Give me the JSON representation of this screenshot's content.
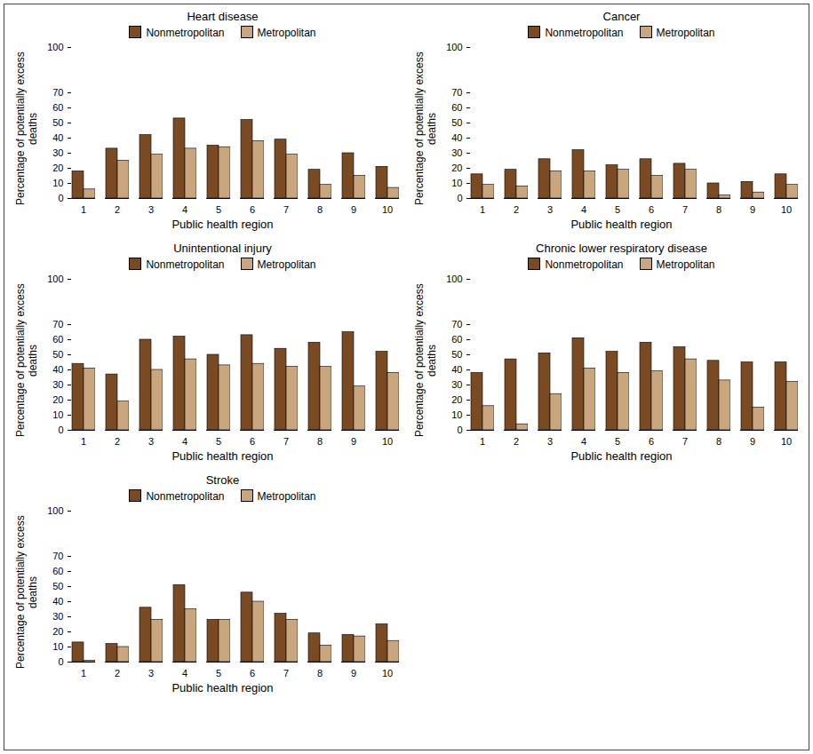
{
  "chart_data": [
    {
      "type": "bar",
      "title": "Heart disease",
      "x_label": "Public health region",
      "y_label": "Percentage of potentially excess deaths",
      "categories": [
        1,
        2,
        3,
        4,
        5,
        6,
        7,
        8,
        9,
        10
      ],
      "series": [
        {
          "name": "Nonmetropolitan",
          "color": "#7a4a22",
          "values": [
            18,
            33,
            42,
            53,
            35,
            52,
            39,
            19,
            30,
            21
          ]
        },
        {
          "name": "Metropolitan",
          "color": "#c9a67e",
          "values": [
            6,
            25,
            29,
            33,
            34,
            38,
            29,
            9,
            15,
            7
          ]
        }
      ],
      "ylim": [
        0,
        100
      ],
      "yticks": [
        0,
        10,
        20,
        30,
        40,
        50,
        60,
        70,
        100
      ],
      "grid": false,
      "legend": "top"
    },
    {
      "type": "bar",
      "title": "Cancer",
      "x_label": "Public health region",
      "y_label": "Percentage of potentially excess deaths",
      "categories": [
        1,
        2,
        3,
        4,
        5,
        6,
        7,
        8,
        9,
        10
      ],
      "series": [
        {
          "name": "Nonmetropolitan",
          "color": "#7a4a22",
          "values": [
            16,
            19,
            26,
            32,
            22,
            26,
            23,
            10,
            11,
            16
          ]
        },
        {
          "name": "Metropolitan",
          "color": "#c9a67e",
          "values": [
            9,
            8,
            18,
            18,
            19,
            15,
            19,
            2,
            4,
            9
          ]
        }
      ],
      "ylim": [
        0,
        100
      ],
      "yticks": [
        0,
        10,
        20,
        30,
        40,
        50,
        60,
        70,
        100
      ],
      "grid": false,
      "legend": "top"
    },
    {
      "type": "bar",
      "title": "Unintentional injury",
      "x_label": "Public health region",
      "y_label": "Percentage of potentially excess deaths",
      "categories": [
        1,
        2,
        3,
        4,
        5,
        6,
        7,
        8,
        9,
        10
      ],
      "series": [
        {
          "name": "Nonmetropolitan",
          "color": "#7a4a22",
          "values": [
            44,
            37,
            60,
            62,
            50,
            63,
            54,
            58,
            65,
            52
          ]
        },
        {
          "name": "Metropolitan",
          "color": "#c9a67e",
          "values": [
            41,
            19,
            40,
            47,
            43,
            44,
            42,
            42,
            29,
            38
          ]
        }
      ],
      "ylim": [
        0,
        100
      ],
      "yticks": [
        0,
        10,
        20,
        30,
        40,
        50,
        60,
        70,
        100
      ],
      "grid": false,
      "legend": "top"
    },
    {
      "type": "bar",
      "title": "Chronic lower respiratory disease",
      "x_label": "Public health region",
      "y_label": "Percentage of potentially excess deaths",
      "categories": [
        1,
        2,
        3,
        4,
        5,
        6,
        7,
        8,
        9,
        10
      ],
      "series": [
        {
          "name": "Nonmetropolitan",
          "color": "#7a4a22",
          "values": [
            38,
            47,
            51,
            61,
            52,
            58,
            55,
            46,
            45,
            45
          ]
        },
        {
          "name": "Metropolitan",
          "color": "#c9a67e",
          "values": [
            16,
            4,
            24,
            41,
            38,
            39,
            47,
            33,
            15,
            32
          ]
        }
      ],
      "ylim": [
        0,
        100
      ],
      "yticks": [
        0,
        10,
        20,
        30,
        40,
        50,
        60,
        70,
        100
      ],
      "grid": false,
      "legend": "top"
    },
    {
      "type": "bar",
      "title": "Stroke",
      "x_label": "Public health region",
      "y_label": "Percentage of potentially excess deaths",
      "categories": [
        1,
        2,
        3,
        4,
        5,
        6,
        7,
        8,
        9,
        10
      ],
      "series": [
        {
          "name": "Nonmetropolitan",
          "color": "#7a4a22",
          "values": [
            13,
            12,
            36,
            51,
            28,
            46,
            32,
            19,
            18,
            25
          ]
        },
        {
          "name": "Metropolitan",
          "color": "#c9a67e",
          "values": [
            1,
            10,
            28,
            35,
            28,
            40,
            28,
            11,
            17,
            14
          ]
        }
      ],
      "ylim": [
        0,
        100
      ],
      "yticks": [
        0,
        10,
        20,
        30,
        40,
        50,
        60,
        70,
        100
      ],
      "grid": false,
      "legend": "top"
    }
  ]
}
